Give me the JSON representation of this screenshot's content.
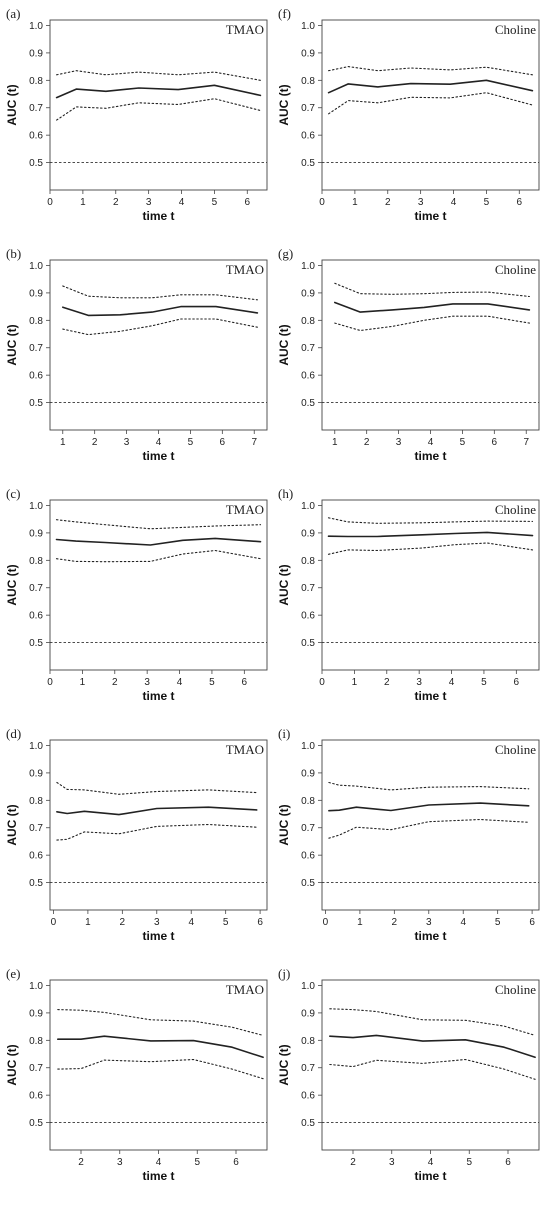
{
  "chart_data": [
    {
      "panel_label": "(a)",
      "title": "TMAO",
      "type": "line",
      "xlabel": "time t",
      "ylabel": "AUC (t)",
      "xlim": [
        0,
        6.6
      ],
      "ylim": [
        0.4,
        1.02
      ],
      "xticks": [
        "0",
        "1",
        "2",
        "3",
        "4",
        "5",
        "6"
      ],
      "yticks": [
        "0.5",
        "0.6",
        "0.7",
        "0.8",
        "0.9",
        "1.0"
      ],
      "reference_line": 0.5,
      "x": [
        0.2,
        0.8,
        1.7,
        2.7,
        3.9,
        5.0,
        6.4
      ],
      "series": [
        {
          "values": [
            0.737,
            0.768,
            0.76,
            0.772,
            0.766,
            0.782,
            0.745
          ]
        },
        {
          "values": [
            0.82,
            0.835,
            0.82,
            0.83,
            0.82,
            0.83,
            0.8
          ]
        },
        {
          "values": [
            0.655,
            0.703,
            0.698,
            0.718,
            0.712,
            0.733,
            0.69
          ]
        }
      ]
    },
    {
      "panel_label": "(f)",
      "title": "Choline",
      "type": "line",
      "xlabel": "time t",
      "ylabel": "AUC (t)",
      "xlim": [
        0,
        6.6
      ],
      "ylim": [
        0.4,
        1.02
      ],
      "xticks": [
        "0",
        "1",
        "2",
        "3",
        "4",
        "5",
        "6"
      ],
      "yticks": [
        "0.5",
        "0.6",
        "0.7",
        "0.8",
        "0.9",
        "1.0"
      ],
      "reference_line": 0.5,
      "x": [
        0.2,
        0.8,
        1.7,
        2.7,
        3.9,
        5.0,
        6.4
      ],
      "series": [
        {
          "values": [
            0.755,
            0.787,
            0.776,
            0.788,
            0.786,
            0.8,
            0.762
          ]
        },
        {
          "values": [
            0.835,
            0.85,
            0.835,
            0.845,
            0.838,
            0.848,
            0.82
          ]
        },
        {
          "values": [
            0.678,
            0.726,
            0.718,
            0.738,
            0.736,
            0.755,
            0.71
          ]
        }
      ]
    },
    {
      "panel_label": "(b)",
      "title": "TMAO",
      "type": "line",
      "xlabel": "time t",
      "ylabel": "AUC (t)",
      "xlim": [
        0.6,
        7.4
      ],
      "ylim": [
        0.4,
        1.02
      ],
      "xticks": [
        "1",
        "2",
        "3",
        "4",
        "5",
        "6",
        "7"
      ],
      "yticks": [
        "0.5",
        "0.6",
        "0.7",
        "0.8",
        "0.9",
        "1.0"
      ],
      "reference_line": 0.5,
      "x": [
        1.0,
        1.8,
        2.8,
        3.8,
        4.7,
        5.8,
        7.1
      ],
      "series": [
        {
          "values": [
            0.848,
            0.818,
            0.82,
            0.83,
            0.85,
            0.85,
            0.827
          ]
        },
        {
          "values": [
            0.925,
            0.888,
            0.882,
            0.882,
            0.893,
            0.893,
            0.875
          ]
        },
        {
          "values": [
            0.768,
            0.748,
            0.76,
            0.78,
            0.805,
            0.805,
            0.775
          ]
        }
      ]
    },
    {
      "panel_label": "(g)",
      "title": "Choline",
      "type": "line",
      "xlabel": "time t",
      "ylabel": "AUC (t)",
      "xlim": [
        0.6,
        7.4
      ],
      "ylim": [
        0.4,
        1.02
      ],
      "xticks": [
        "1",
        "2",
        "3",
        "4",
        "5",
        "6",
        "7"
      ],
      "yticks": [
        "0.5",
        "0.6",
        "0.7",
        "0.8",
        "0.9",
        "1.0"
      ],
      "reference_line": 0.5,
      "x": [
        1.0,
        1.8,
        2.8,
        3.8,
        4.7,
        5.8,
        7.1
      ],
      "series": [
        {
          "values": [
            0.865,
            0.83,
            0.838,
            0.847,
            0.86,
            0.86,
            0.838
          ]
        },
        {
          "values": [
            0.935,
            0.897,
            0.895,
            0.897,
            0.902,
            0.903,
            0.887
          ]
        },
        {
          "values": [
            0.79,
            0.763,
            0.778,
            0.8,
            0.815,
            0.815,
            0.79
          ]
        }
      ]
    },
    {
      "panel_label": "(c)",
      "title": "TMAO",
      "type": "line",
      "xlabel": "time t",
      "ylabel": "AUC (t)",
      "xlim": [
        0,
        6.7
      ],
      "ylim": [
        0.4,
        1.02
      ],
      "xticks": [
        "0",
        "1",
        "2",
        "3",
        "4",
        "5",
        "6"
      ],
      "yticks": [
        "0.5",
        "0.6",
        "0.7",
        "0.8",
        "0.9",
        "1.0"
      ],
      "reference_line": 0.5,
      "x": [
        0.2,
        0.8,
        1.7,
        3.1,
        4.1,
        5.1,
        6.5
      ],
      "series": [
        {
          "values": [
            0.876,
            0.87,
            0.865,
            0.856,
            0.873,
            0.88,
            0.868
          ]
        },
        {
          "values": [
            0.948,
            0.94,
            0.93,
            0.915,
            0.92,
            0.925,
            0.93
          ]
        },
        {
          "values": [
            0.806,
            0.796,
            0.795,
            0.796,
            0.823,
            0.836,
            0.806
          ]
        }
      ]
    },
    {
      "panel_label": "(h)",
      "title": "Choline",
      "type": "line",
      "xlabel": "time t",
      "ylabel": "AUC (t)",
      "xlim": [
        0,
        6.7
      ],
      "ylim": [
        0.4,
        1.02
      ],
      "xticks": [
        "0",
        "1",
        "2",
        "3",
        "4",
        "5",
        "6"
      ],
      "yticks": [
        "0.5",
        "0.6",
        "0.7",
        "0.8",
        "0.9",
        "1.0"
      ],
      "reference_line": 0.5,
      "x": [
        0.2,
        0.8,
        1.7,
        3.1,
        4.1,
        5.1,
        6.5
      ],
      "series": [
        {
          "values": [
            0.888,
            0.887,
            0.887,
            0.893,
            0.898,
            0.902,
            0.89
          ]
        },
        {
          "values": [
            0.955,
            0.94,
            0.935,
            0.937,
            0.94,
            0.943,
            0.942
          ]
        },
        {
          "values": [
            0.822,
            0.838,
            0.836,
            0.845,
            0.857,
            0.863,
            0.838
          ]
        }
      ]
    },
    {
      "panel_label": "(d)",
      "title": "TMAO",
      "type": "line",
      "xlabel": "time t",
      "ylabel": "AUC (t)",
      "xlim": [
        -0.1,
        6.2
      ],
      "ylim": [
        0.4,
        1.02
      ],
      "xticks": [
        "0",
        "1",
        "2",
        "3",
        "4",
        "5",
        "6"
      ],
      "yticks": [
        "0.5",
        "0.6",
        "0.7",
        "0.8",
        "0.9",
        "1.0"
      ],
      "reference_line": 0.5,
      "x": [
        0.1,
        0.4,
        0.9,
        1.9,
        3.0,
        4.5,
        5.9
      ],
      "series": [
        {
          "values": [
            0.758,
            0.752,
            0.76,
            0.748,
            0.77,
            0.775,
            0.765
          ]
        },
        {
          "values": [
            0.865,
            0.84,
            0.838,
            0.822,
            0.832,
            0.838,
            0.828
          ]
        },
        {
          "values": [
            0.655,
            0.658,
            0.685,
            0.678,
            0.705,
            0.712,
            0.702
          ]
        }
      ]
    },
    {
      "panel_label": "(i)",
      "title": "Choline",
      "type": "line",
      "xlabel": "time t",
      "ylabel": "AUC (t)",
      "xlim": [
        -0.1,
        6.2
      ],
      "ylim": [
        0.4,
        1.02
      ],
      "xticks": [
        "0",
        "1",
        "2",
        "3",
        "4",
        "5",
        "6"
      ],
      "yticks": [
        "0.5",
        "0.6",
        "0.7",
        "0.8",
        "0.9",
        "1.0"
      ],
      "reference_line": 0.5,
      "x": [
        0.1,
        0.4,
        0.9,
        1.9,
        3.0,
        4.5,
        5.9
      ],
      "series": [
        {
          "values": [
            0.762,
            0.764,
            0.775,
            0.763,
            0.783,
            0.79,
            0.78
          ]
        },
        {
          "values": [
            0.865,
            0.855,
            0.852,
            0.838,
            0.848,
            0.85,
            0.842
          ]
        },
        {
          "values": [
            0.662,
            0.673,
            0.702,
            0.693,
            0.722,
            0.73,
            0.72
          ]
        }
      ]
    },
    {
      "panel_label": "(e)",
      "title": "TMAO",
      "type": "line",
      "xlabel": "time t",
      "ylabel": "AUC (t)",
      "xlim": [
        1.2,
        6.8
      ],
      "ylim": [
        0.4,
        1.02
      ],
      "xticks": [
        "2",
        "3",
        "4",
        "5",
        "6"
      ],
      "yticks": [
        "0.5",
        "0.6",
        "0.7",
        "0.8",
        "0.9",
        "1.0"
      ],
      "reference_line": 0.5,
      "x": [
        1.4,
        2.0,
        2.6,
        3.8,
        4.9,
        5.9,
        6.7
      ],
      "series": [
        {
          "values": [
            0.804,
            0.804,
            0.815,
            0.798,
            0.799,
            0.775,
            0.738
          ]
        },
        {
          "values": [
            0.912,
            0.91,
            0.902,
            0.875,
            0.87,
            0.848,
            0.818
          ]
        },
        {
          "values": [
            0.695,
            0.697,
            0.728,
            0.722,
            0.73,
            0.695,
            0.66
          ]
        }
      ]
    },
    {
      "panel_label": "(j)",
      "title": "Choline",
      "type": "line",
      "xlabel": "time t",
      "ylabel": "AUC (t)",
      "xlim": [
        1.2,
        6.8
      ],
      "ylim": [
        0.4,
        1.02
      ],
      "xticks": [
        "2",
        "3",
        "4",
        "5",
        "6"
      ],
      "yticks": [
        "0.5",
        "0.6",
        "0.7",
        "0.8",
        "0.9",
        "1.0"
      ],
      "reference_line": 0.5,
      "x": [
        1.4,
        2.0,
        2.6,
        3.8,
        4.9,
        5.9,
        6.7
      ],
      "series": [
        {
          "values": [
            0.815,
            0.81,
            0.818,
            0.797,
            0.802,
            0.775,
            0.738
          ]
        },
        {
          "values": [
            0.915,
            0.912,
            0.905,
            0.875,
            0.873,
            0.852,
            0.818
          ]
        },
        {
          "values": [
            0.712,
            0.704,
            0.727,
            0.716,
            0.73,
            0.695,
            0.658
          ]
        }
      ]
    }
  ]
}
